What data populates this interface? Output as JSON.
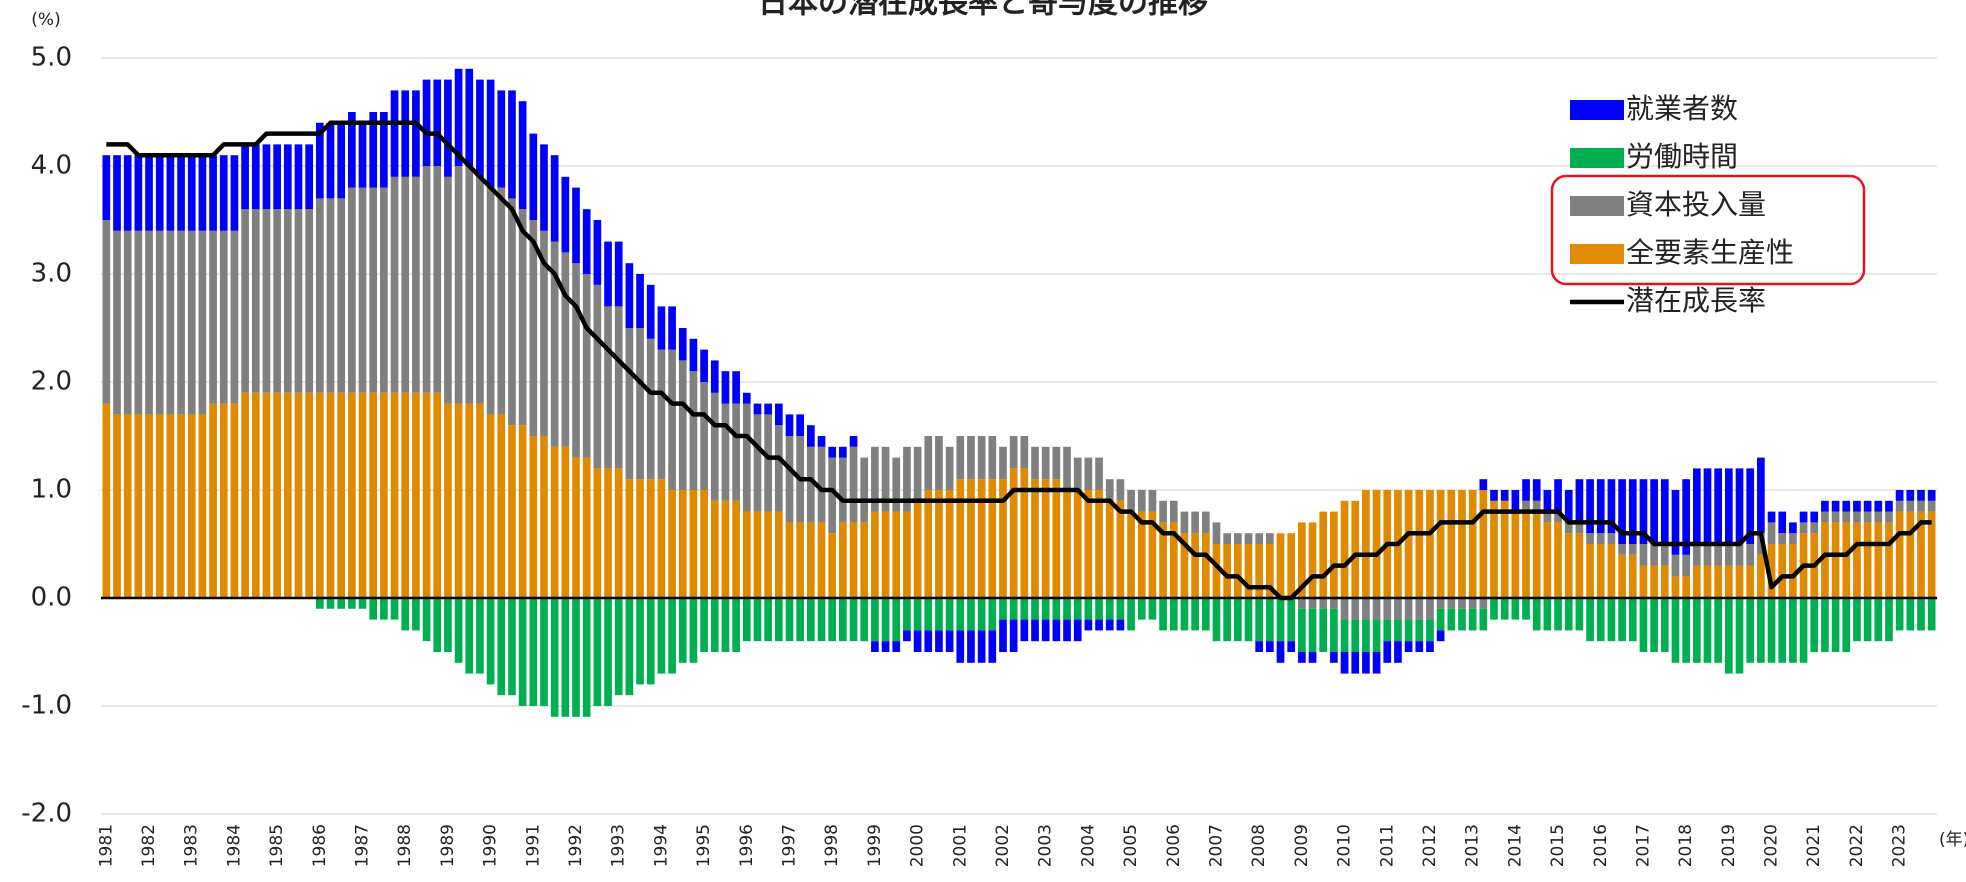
{
  "chart_data": {
    "type": "bar",
    "stacked": true,
    "title": "日本の潜在成長率と寄与度の推移",
    "y_unit": "(%)",
    "x_unit": "(年)",
    "categories": [
      "1981",
      null,
      null,
      null,
      "1982",
      null,
      null,
      null,
      "1983",
      null,
      null,
      null,
      "1984",
      null,
      null,
      null,
      "1985",
      null,
      null,
      null,
      "1986",
      null,
      null,
      null,
      "1987",
      null,
      null,
      null,
      "1988",
      null,
      null,
      null,
      "1989",
      null,
      null,
      null,
      "1990",
      null,
      null,
      null,
      "1991",
      null,
      null,
      null,
      "1992",
      null,
      null,
      null,
      "1993",
      null,
      null,
      null,
      "1994",
      null,
      null,
      null,
      "1995",
      null,
      null,
      null,
      "1996",
      null,
      null,
      null,
      "1997",
      null,
      null,
      null,
      "1998",
      null,
      null,
      null,
      "1999",
      null,
      null,
      null,
      "2000",
      null,
      null,
      null,
      "2001",
      null,
      null,
      null,
      "2002",
      null,
      null,
      null,
      "2003",
      null,
      null,
      null,
      "2004",
      null,
      null,
      null,
      "2005",
      null,
      null,
      null,
      "2006",
      null,
      null,
      null,
      "2007",
      null,
      null,
      null,
      "2008",
      null,
      null,
      null,
      "2009",
      null,
      null,
      null,
      "2010",
      null,
      null,
      null,
      "2011",
      null,
      null,
      null,
      "2012",
      null,
      null,
      null,
      "2013",
      null,
      null,
      null,
      "2014",
      null,
      null,
      null,
      "2015",
      null,
      null,
      null,
      "2016",
      null,
      null,
      null,
      "2017",
      null,
      null,
      null,
      "2018",
      null,
      null,
      null,
      "2019",
      null,
      null,
      null,
      "2020",
      null,
      null,
      null,
      "2021",
      null,
      null,
      null,
      "2022",
      null,
      null,
      null,
      "2023",
      null,
      null,
      null
    ],
    "series": [
      {
        "name": "就業者数",
        "color": "#0000ff",
        "values": [
          0.6,
          0.7,
          0.7,
          0.7,
          0.7,
          0.7,
          0.7,
          0.7,
          0.7,
          0.7,
          0.7,
          0.7,
          0.7,
          0.6,
          0.6,
          0.6,
          0.6,
          0.6,
          0.6,
          0.6,
          0.7,
          0.7,
          0.7,
          0.7,
          0.6,
          0.7,
          0.7,
          0.8,
          0.8,
          0.8,
          0.8,
          0.8,
          0.9,
          0.9,
          0.9,
          0.9,
          1.0,
          0.9,
          1.0,
          1.0,
          0.8,
          0.8,
          0.8,
          0.7,
          0.7,
          0.6,
          0.6,
          0.6,
          0.6,
          0.6,
          0.5,
          0.5,
          0.4,
          0.4,
          0.3,
          0.3,
          0.3,
          0.3,
          0.3,
          0.3,
          0.1,
          0.1,
          0.1,
          0.2,
          0.2,
          0.2,
          0.2,
          0.1,
          0.1,
          0.1,
          0.1,
          0,
          -0.1,
          -0.1,
          -0.1,
          -0.1,
          -0.2,
          -0.2,
          -0.2,
          -0.2,
          -0.3,
          -0.3,
          -0.3,
          -0.3,
          -0.3,
          -0.3,
          -0.2,
          -0.2,
          -0.2,
          -0.2,
          -0.2,
          -0.2,
          -0.1,
          -0.1,
          -0.1,
          -0.1,
          0,
          0,
          0,
          0,
          0,
          0,
          0,
          0,
          0,
          0,
          0,
          0,
          -0.1,
          -0.1,
          -0.2,
          -0.1,
          -0.1,
          -0.1,
          0,
          -0.1,
          -0.2,
          -0.2,
          -0.2,
          -0.2,
          -0.2,
          -0.2,
          -0.1,
          -0.1,
          -0.1,
          -0.1,
          0,
          0,
          0,
          0.1,
          0.1,
          0.1,
          0.2,
          0.2,
          0.2,
          0.2,
          0.3,
          0.3,
          0.4,
          0.5,
          0.5,
          0.5,
          0.6,
          0.6,
          0.6,
          0.6,
          0.6,
          0.6,
          0.7,
          0.7,
          0.7,
          0.7,
          0.7,
          0.7,
          0.7,
          0.7,
          0.1,
          0.2,
          0.1,
          0.1,
          0.1,
          0.1,
          0.1,
          0.1,
          0.1,
          0.1,
          0.1,
          0.1,
          0.1,
          0.1,
          0.1,
          0.1
        ]
      },
      {
        "name": "労働時間",
        "color": "#00b050",
        "values": [
          0,
          0,
          0,
          0,
          0,
          0,
          0,
          0,
          0,
          0,
          0,
          0,
          0,
          0,
          0,
          0,
          0,
          0,
          0,
          0,
          -0.1,
          -0.1,
          -0.1,
          -0.1,
          -0.1,
          -0.2,
          -0.2,
          -0.2,
          -0.3,
          -0.3,
          -0.4,
          -0.5,
          -0.5,
          -0.6,
          -0.7,
          -0.7,
          -0.8,
          -0.9,
          -0.9,
          -1.0,
          -1.0,
          -1.0,
          -1.1,
          -1.1,
          -1.1,
          -1.1,
          -1.0,
          -1.0,
          -0.9,
          -0.9,
          -0.8,
          -0.8,
          -0.7,
          -0.7,
          -0.6,
          -0.6,
          -0.5,
          -0.5,
          -0.5,
          -0.5,
          -0.4,
          -0.4,
          -0.4,
          -0.4,
          -0.4,
          -0.4,
          -0.4,
          -0.4,
          -0.4,
          -0.4,
          -0.4,
          -0.4,
          -0.4,
          -0.4,
          -0.4,
          -0.3,
          -0.3,
          -0.3,
          -0.3,
          -0.3,
          -0.3,
          -0.3,
          -0.3,
          -0.3,
          -0.2,
          -0.2,
          -0.2,
          -0.2,
          -0.2,
          -0.2,
          -0.2,
          -0.2,
          -0.2,
          -0.2,
          -0.2,
          -0.2,
          -0.3,
          -0.2,
          -0.2,
          -0.3,
          -0.3,
          -0.3,
          -0.3,
          -0.3,
          -0.4,
          -0.4,
          -0.4,
          -0.4,
          -0.4,
          -0.4,
          -0.4,
          -0.4,
          -0.4,
          -0.4,
          -0.4,
          -0.4,
          -0.3,
          -0.3,
          -0.3,
          -0.3,
          -0.2,
          -0.2,
          -0.2,
          -0.2,
          -0.2,
          -0.2,
          -0.2,
          -0.2,
          -0.2,
          -0.2,
          -0.2,
          -0.2,
          -0.2,
          -0.2,
          -0.3,
          -0.3,
          -0.3,
          -0.3,
          -0.3,
          -0.4,
          -0.4,
          -0.4,
          -0.4,
          -0.4,
          -0.5,
          -0.5,
          -0.5,
          -0.6,
          -0.6,
          -0.6,
          -0.6,
          -0.6,
          -0.7,
          -0.7,
          -0.6,
          -0.6,
          -0.6,
          -0.6,
          -0.6,
          -0.6,
          -0.5,
          -0.5,
          -0.5,
          -0.5,
          -0.4,
          -0.4,
          -0.4,
          -0.4,
          -0.3,
          -0.3,
          -0.3,
          -0.3
        ]
      },
      {
        "name": "資本投入量",
        "color": "#808080",
        "values": [
          1.7,
          1.7,
          1.7,
          1.7,
          1.7,
          1.7,
          1.7,
          1.7,
          1.7,
          1.7,
          1.6,
          1.6,
          1.6,
          1.7,
          1.7,
          1.7,
          1.7,
          1.7,
          1.7,
          1.7,
          1.8,
          1.8,
          1.8,
          1.9,
          1.9,
          1.9,
          1.9,
          2.0,
          2.0,
          2.0,
          2.1,
          2.1,
          2.1,
          2.2,
          2.2,
          2.1,
          2.1,
          2.1,
          2.1,
          2.0,
          2.0,
          1.9,
          1.9,
          1.8,
          1.8,
          1.7,
          1.7,
          1.5,
          1.5,
          1.4,
          1.4,
          1.3,
          1.2,
          1.3,
          1.2,
          1.1,
          1.0,
          1.0,
          0.9,
          0.9,
          1.0,
          0.9,
          0.9,
          0.8,
          0.8,
          0.8,
          0.7,
          0.7,
          0.7,
          0.6,
          0.7,
          0.6,
          0.6,
          0.6,
          0.5,
          0.6,
          0.5,
          0.5,
          0.5,
          0.4,
          0.4,
          0.4,
          0.4,
          0.4,
          0.3,
          0.3,
          0.3,
          0.3,
          0.3,
          0.3,
          0.4,
          0.3,
          0.3,
          0.3,
          0.2,
          0.2,
          0.2,
          0.2,
          0.2,
          0.2,
          0.2,
          0.2,
          0.2,
          0.2,
          0.2,
          0.1,
          0.1,
          0.1,
          0.1,
          0.1,
          0,
          0,
          -0.1,
          -0.1,
          -0.1,
          -0.1,
          -0.2,
          -0.2,
          -0.2,
          -0.2,
          -0.2,
          -0.2,
          -0.2,
          -0.2,
          -0.2,
          -0.1,
          -0.1,
          -0.1,
          -0.1,
          -0.1,
          0,
          0,
          0,
          0.1,
          0.1,
          0.1,
          0.1,
          0.1,
          0.1,
          0.1,
          0.1,
          0.1,
          0.1,
          0.1,
          0.2,
          0.2,
          0.2,
          0.2,
          0.2,
          0.2,
          0.2,
          0.2,
          0.2,
          0.2,
          0.2,
          0.2,
          0.2,
          0.1,
          0.1,
          0.1,
          0.1,
          0.1,
          0.1,
          0.1,
          0.1,
          0.1,
          0.1,
          0.1,
          0.1,
          0.1,
          0.1,
          0.1
        ]
      },
      {
        "name": "全要素生産性",
        "color": "#df8a00",
        "values": [
          1.8,
          1.7,
          1.7,
          1.7,
          1.7,
          1.7,
          1.7,
          1.7,
          1.7,
          1.7,
          1.8,
          1.8,
          1.8,
          1.9,
          1.9,
          1.9,
          1.9,
          1.9,
          1.9,
          1.9,
          1.9,
          1.9,
          1.9,
          1.9,
          1.9,
          1.9,
          1.9,
          1.9,
          1.9,
          1.9,
          1.9,
          1.9,
          1.8,
          1.8,
          1.8,
          1.8,
          1.7,
          1.7,
          1.6,
          1.6,
          1.5,
          1.5,
          1.4,
          1.4,
          1.3,
          1.3,
          1.2,
          1.2,
          1.2,
          1.1,
          1.1,
          1.1,
          1.1,
          1.0,
          1.0,
          1.0,
          1.0,
          0.9,
          0.9,
          0.9,
          0.8,
          0.8,
          0.8,
          0.8,
          0.7,
          0.7,
          0.7,
          0.7,
          0.6,
          0.7,
          0.7,
          0.7,
          0.8,
          0.8,
          0.8,
          0.8,
          0.9,
          1.0,
          1.0,
          1.0,
          1.1,
          1.1,
          1.1,
          1.1,
          1.1,
          1.2,
          1.2,
          1.1,
          1.1,
          1.1,
          1.0,
          1.0,
          1.0,
          1.0,
          0.9,
          0.9,
          0.8,
          0.8,
          0.8,
          0.7,
          0.7,
          0.6,
          0.6,
          0.6,
          0.5,
          0.5,
          0.5,
          0.5,
          0.5,
          0.5,
          0.6,
          0.6,
          0.7,
          0.7,
          0.8,
          0.8,
          0.9,
          0.9,
          1.0,
          1.0,
          1.0,
          1.0,
          1.0,
          1.0,
          1.0,
          1.0,
          1.0,
          1.0,
          1.0,
          1.0,
          0.9,
          0.9,
          0.8,
          0.8,
          0.8,
          0.7,
          0.7,
          0.6,
          0.6,
          0.5,
          0.5,
          0.5,
          0.4,
          0.4,
          0.3,
          0.3,
          0.3,
          0.2,
          0.2,
          0.3,
          0.3,
          0.3,
          0.3,
          0.3,
          0.3,
          0.4,
          0.5,
          0.5,
          0.5,
          0.6,
          0.6,
          0.7,
          0.7,
          0.7,
          0.7,
          0.7,
          0.7,
          0.7,
          0.8,
          0.8,
          0.8,
          0.8
        ]
      },
      {
        "name": "潜在成長率",
        "type": "line",
        "color": "#000000",
        "values": [
          4.2,
          4.2,
          4.2,
          4.1,
          4.1,
          4.1,
          4.1,
          4.1,
          4.1,
          4.1,
          4.1,
          4.2,
          4.2,
          4.2,
          4.2,
          4.3,
          4.3,
          4.3,
          4.3,
          4.3,
          4.3,
          4.4,
          4.4,
          4.4,
          4.4,
          4.4,
          4.4,
          4.4,
          4.4,
          4.4,
          4.3,
          4.3,
          4.2,
          4.1,
          4.0,
          3.9,
          3.8,
          3.7,
          3.6,
          3.4,
          3.3,
          3.1,
          3.0,
          2.8,
          2.7,
          2.5,
          2.4,
          2.3,
          2.2,
          2.1,
          2.0,
          1.9,
          1.9,
          1.8,
          1.8,
          1.7,
          1.7,
          1.6,
          1.6,
          1.5,
          1.5,
          1.4,
          1.3,
          1.3,
          1.2,
          1.1,
          1.1,
          1.0,
          1.0,
          0.9,
          0.9,
          0.9,
          0.9,
          0.9,
          0.9,
          0.9,
          0.9,
          0.9,
          0.9,
          0.9,
          0.9,
          0.9,
          0.9,
          0.9,
          0.9,
          1.0,
          1.0,
          1.0,
          1.0,
          1.0,
          1.0,
          1.0,
          0.9,
          0.9,
          0.9,
          0.8,
          0.8,
          0.7,
          0.7,
          0.6,
          0.6,
          0.5,
          0.4,
          0.4,
          0.3,
          0.2,
          0.2,
          0.1,
          0.1,
          0.1,
          0.0,
          0.0,
          0.1,
          0.2,
          0.2,
          0.3,
          0.3,
          0.4,
          0.4,
          0.4,
          0.5,
          0.5,
          0.6,
          0.6,
          0.6,
          0.7,
          0.7,
          0.7,
          0.7,
          0.8,
          0.8,
          0.8,
          0.8,
          0.8,
          0.8,
          0.8,
          0.8,
          0.7,
          0.7,
          0.7,
          0.7,
          0.7,
          0.6,
          0.6,
          0.6,
          0.5,
          0.5,
          0.5,
          0.5,
          0.5,
          0.5,
          0.5,
          0.5,
          0.5,
          0.6,
          0.6,
          0.1,
          0.2,
          0.2,
          0.3,
          0.3,
          0.4,
          0.4,
          0.4,
          0.5,
          0.5,
          0.5,
          0.5,
          0.6,
          0.6,
          0.7,
          0.7
        ]
      }
    ],
    "ylim": [
      -2,
      5
    ],
    "yticks": [
      {
        "value": -2,
        "label": "-2.0"
      },
      {
        "value": -1,
        "label": "-1.0"
      },
      {
        "value": 0,
        "label": "0.0"
      },
      {
        "value": 1,
        "label": "1.0"
      },
      {
        "value": 2,
        "label": "2.0"
      },
      {
        "value": 3,
        "label": "3.0"
      },
      {
        "value": 4,
        "label": "4.0"
      },
      {
        "value": 5,
        "label": "5.0"
      }
    ],
    "grid": true,
    "legend": "upper right"
  }
}
